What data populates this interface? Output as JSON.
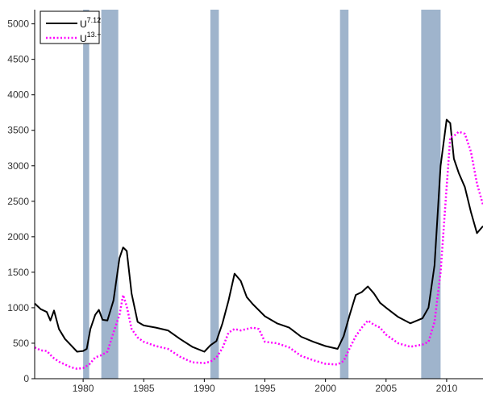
{
  "chart_data": {
    "type": "line",
    "title": "",
    "xlabel": "",
    "ylabel": "",
    "xlim": [
      1976,
      2013
    ],
    "ylim": [
      0,
      5200
    ],
    "x_ticks": [
      1980,
      1985,
      1990,
      1995,
      2000,
      2005,
      2010
    ],
    "y_ticks": [
      0,
      500,
      1000,
      1500,
      2000,
      2500,
      3000,
      3500,
      4000,
      4500,
      5000
    ],
    "grid": false,
    "legend_position": "top-left",
    "recession_bands": [
      [
        1980.0,
        1980.5
      ],
      [
        1981.5,
        1982.9
      ],
      [
        1990.5,
        1991.2
      ],
      [
        2001.2,
        2001.9
      ],
      [
        2007.9,
        2009.5
      ]
    ],
    "recession_color": "#9fb4cc",
    "series": [
      {
        "name_base": "U",
        "name_sup": "7.12",
        "style": "solid",
        "color": "#000000",
        "points": [
          [
            1976.0,
            1060
          ],
          [
            1976.5,
            980
          ],
          [
            1977.0,
            940
          ],
          [
            1977.3,
            820
          ],
          [
            1977.6,
            960
          ],
          [
            1978.0,
            700
          ],
          [
            1978.5,
            560
          ],
          [
            1979.0,
            470
          ],
          [
            1979.5,
            380
          ],
          [
            1980.0,
            390
          ],
          [
            1980.3,
            420
          ],
          [
            1980.6,
            700
          ],
          [
            1981.0,
            900
          ],
          [
            1981.3,
            970
          ],
          [
            1981.6,
            830
          ],
          [
            1982.0,
            820
          ],
          [
            1982.5,
            1100
          ],
          [
            1983.0,
            1700
          ],
          [
            1983.3,
            1850
          ],
          [
            1983.6,
            1800
          ],
          [
            1984.0,
            1200
          ],
          [
            1984.5,
            800
          ],
          [
            1985.0,
            750
          ],
          [
            1986.0,
            720
          ],
          [
            1987.0,
            680
          ],
          [
            1988.0,
            560
          ],
          [
            1989.0,
            450
          ],
          [
            1990.0,
            380
          ],
          [
            1990.5,
            470
          ],
          [
            1991.0,
            530
          ],
          [
            1991.5,
            780
          ],
          [
            1992.0,
            1100
          ],
          [
            1992.5,
            1480
          ],
          [
            1993.0,
            1380
          ],
          [
            1993.5,
            1150
          ],
          [
            1994.0,
            1050
          ],
          [
            1995.0,
            880
          ],
          [
            1996.0,
            780
          ],
          [
            1997.0,
            720
          ],
          [
            1998.0,
            590
          ],
          [
            1999.0,
            520
          ],
          [
            2000.0,
            460
          ],
          [
            2001.0,
            420
          ],
          [
            2001.5,
            600
          ],
          [
            2002.0,
            900
          ],
          [
            2002.5,
            1180
          ],
          [
            2003.0,
            1220
          ],
          [
            2003.5,
            1300
          ],
          [
            2004.0,
            1200
          ],
          [
            2004.5,
            1070
          ],
          [
            2005.0,
            1000
          ],
          [
            2006.0,
            870
          ],
          [
            2007.0,
            780
          ],
          [
            2008.0,
            850
          ],
          [
            2008.5,
            1000
          ],
          [
            2009.0,
            1600
          ],
          [
            2009.5,
            3000
          ],
          [
            2010.0,
            3650
          ],
          [
            2010.3,
            3600
          ],
          [
            2010.6,
            3100
          ],
          [
            2011.0,
            2900
          ],
          [
            2011.5,
            2700
          ],
          [
            2012.0,
            2350
          ],
          [
            2012.5,
            2050
          ],
          [
            2013.0,
            2150
          ]
        ]
      },
      {
        "name_base": "U",
        "name_sup": "13.+",
        "style": "dotted",
        "color": "#ff00ff",
        "points": [
          [
            1976.0,
            440
          ],
          [
            1976.5,
            400
          ],
          [
            1977.0,
            390
          ],
          [
            1977.5,
            300
          ],
          [
            1978.0,
            240
          ],
          [
            1978.5,
            200
          ],
          [
            1979.0,
            160
          ],
          [
            1979.5,
            140
          ],
          [
            1980.0,
            150
          ],
          [
            1980.5,
            200
          ],
          [
            1981.0,
            300
          ],
          [
            1981.5,
            330
          ],
          [
            1982.0,
            380
          ],
          [
            1982.5,
            650
          ],
          [
            1983.0,
            900
          ],
          [
            1983.3,
            1180
          ],
          [
            1983.6,
            1020
          ],
          [
            1984.0,
            700
          ],
          [
            1984.5,
            580
          ],
          [
            1985.0,
            520
          ],
          [
            1986.0,
            460
          ],
          [
            1987.0,
            420
          ],
          [
            1988.0,
            310
          ],
          [
            1989.0,
            230
          ],
          [
            1990.0,
            220
          ],
          [
            1990.5,
            240
          ],
          [
            1991.0,
            300
          ],
          [
            1991.5,
            430
          ],
          [
            1992.0,
            650
          ],
          [
            1992.5,
            700
          ],
          [
            1993.0,
            680
          ],
          [
            1993.5,
            700
          ],
          [
            1994.0,
            720
          ],
          [
            1994.5,
            700
          ],
          [
            1995.0,
            520
          ],
          [
            1996.0,
            500
          ],
          [
            1997.0,
            440
          ],
          [
            1998.0,
            320
          ],
          [
            1999.0,
            260
          ],
          [
            2000.0,
            210
          ],
          [
            2001.0,
            200
          ],
          [
            2001.5,
            250
          ],
          [
            2002.0,
            430
          ],
          [
            2002.5,
            600
          ],
          [
            2003.0,
            720
          ],
          [
            2003.5,
            820
          ],
          [
            2004.0,
            760
          ],
          [
            2004.5,
            720
          ],
          [
            2005.0,
            620
          ],
          [
            2006.0,
            500
          ],
          [
            2007.0,
            450
          ],
          [
            2008.0,
            480
          ],
          [
            2008.5,
            520
          ],
          [
            2009.0,
            800
          ],
          [
            2009.5,
            1500
          ],
          [
            2010.0,
            2700
          ],
          [
            2010.3,
            3400
          ],
          [
            2010.6,
            3420
          ],
          [
            2011.0,
            3480
          ],
          [
            2011.5,
            3450
          ],
          [
            2012.0,
            3200
          ],
          [
            2012.5,
            2750
          ],
          [
            2013.0,
            2450
          ]
        ]
      }
    ]
  }
}
